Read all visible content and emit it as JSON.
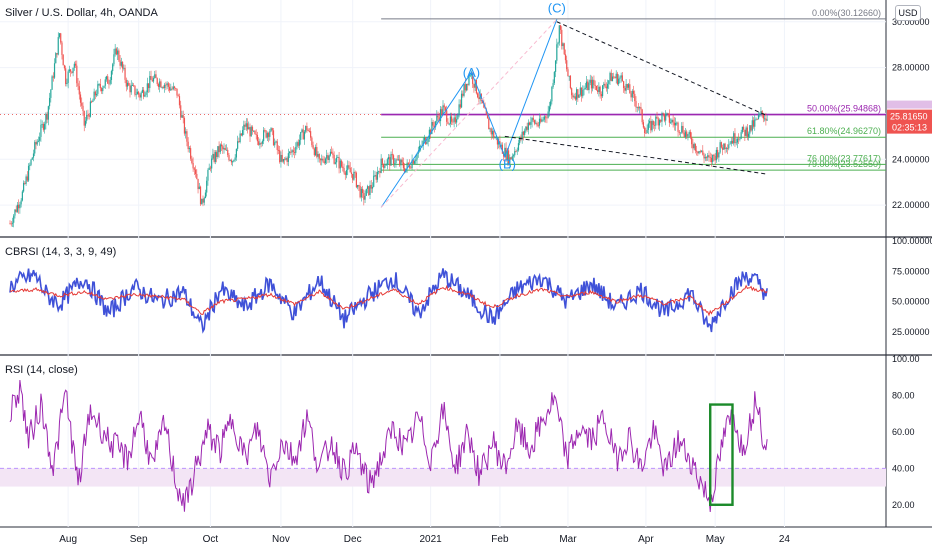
{
  "header": {
    "main_title": "Silver / U.S. Dollar, 4h, OANDA",
    "currency": "USD"
  },
  "chart_data": [
    {
      "type": "candlestick",
      "title": "Silver / U.S. Dollar, 4h, OANDA",
      "ylim": [
        21.0,
        30.6
      ],
      "yticks": [
        "30.00000",
        "28.00000",
        "26.00000",
        "24.00000",
        "22.00000"
      ],
      "yticks_values": [
        30,
        28,
        26,
        24,
        22
      ],
      "price_marker": {
        "value": "25.81650",
        "countdown": "02:35:13",
        "price": 25.8165,
        "color": "#ef5350"
      },
      "series_anchors": [
        [
          0,
          21.2
        ],
        [
          10,
          22.5
        ],
        [
          20,
          24.5
        ],
        [
          30,
          26.0
        ],
        [
          40,
          29.5
        ],
        [
          45,
          27.5
        ],
        [
          52,
          28.2
        ],
        [
          60,
          25.5
        ],
        [
          70,
          27.0
        ],
        [
          80,
          27.5
        ],
        [
          86,
          28.8
        ],
        [
          95,
          27.2
        ],
        [
          105,
          26.8
        ],
        [
          115,
          27.5
        ],
        [
          125,
          27.3
        ],
        [
          135,
          26.9
        ],
        [
          142,
          25.0
        ],
        [
          150,
          23.5
        ],
        [
          155,
          22.0
        ],
        [
          162,
          23.8
        ],
        [
          170,
          24.5
        ],
        [
          180,
          24.0
        ],
        [
          190,
          25.5
        ],
        [
          200,
          24.8
        ],
        [
          210,
          25.3
        ],
        [
          220,
          23.8
        ],
        [
          230,
          24.5
        ],
        [
          240,
          25.4
        ],
        [
          250,
          23.8
        ],
        [
          258,
          24.3
        ],
        [
          268,
          23.7
        ],
        [
          278,
          23.3
        ],
        [
          285,
          22.3
        ],
        [
          292,
          22.8
        ],
        [
          300,
          23.8
        ],
        [
          310,
          24.0
        ],
        [
          320,
          23.6
        ],
        [
          330,
          24.3
        ],
        [
          340,
          25.3
        ],
        [
          350,
          26.2
        ],
        [
          358,
          25.4
        ],
        [
          366,
          26.9
        ],
        [
          372,
          27.8
        ],
        [
          380,
          26.6
        ],
        [
          388,
          25.3
        ],
        [
          396,
          24.6
        ],
        [
          404,
          24.0
        ],
        [
          412,
          24.8
        ],
        [
          420,
          25.7
        ],
        [
          428,
          25.5
        ],
        [
          436,
          26.2
        ],
        [
          444,
          29.8
        ],
        [
          448,
          28.5
        ],
        [
          454,
          26.8
        ],
        [
          462,
          27.0
        ],
        [
          470,
          27.3
        ],
        [
          478,
          27.0
        ],
        [
          486,
          27.6
        ],
        [
          494,
          27.5
        ],
        [
          500,
          27.0
        ],
        [
          508,
          26.3
        ],
        [
          514,
          25.2
        ],
        [
          520,
          25.6
        ],
        [
          528,
          25.9
        ],
        [
          536,
          25.6
        ],
        [
          544,
          25.3
        ],
        [
          552,
          24.7
        ],
        [
          560,
          24.2
        ],
        [
          566,
          23.9
        ],
        [
          574,
          24.5
        ],
        [
          582,
          24.8
        ],
        [
          590,
          25.1
        ],
        [
          598,
          25.3
        ],
        [
          604,
          25.7
        ],
        [
          608,
          26.0
        ],
        [
          612,
          25.8
        ]
      ],
      "fib_levels": [
        {
          "label": "0.00%(30.12660)",
          "value": 30.1266,
          "color": "#787b86"
        },
        {
          "label": "50.00%(25.94868)",
          "value": 25.94868,
          "color": "#9c27b0"
        },
        {
          "label": "61.80%(24.96270)",
          "value": 24.9627,
          "color": "#4caf50"
        },
        {
          "label": "76.00%(23.77617)",
          "value": 23.77617,
          "color": "#4caf50"
        },
        {
          "label": "79.00%(23.52550)",
          "value": 23.5255,
          "color": "#4caf50"
        }
      ],
      "wave_labels": [
        {
          "label": "(A)",
          "x": 373,
          "value": 27.6
        },
        {
          "label": "(B)",
          "x": 402,
          "value": 23.6
        },
        {
          "label": "(C)",
          "x": 442,
          "value": 30.4
        }
      ],
      "channel_lines": [
        [
          [
            442,
            30.0
          ],
          [
            612,
            25.9
          ]
        ],
        [
          [
            400,
            25.0
          ],
          [
            612,
            23.35
          ]
        ]
      ],
      "wave_lines": [
        [
          [
            300,
            21.9
          ],
          [
            373,
            27.8
          ],
          [
            400,
            24.1
          ],
          [
            442,
            30.1
          ]
        ]
      ]
    },
    {
      "type": "line",
      "title": "CBRSI (14, 3, 3, 9, 49)",
      "ylim": [
        10,
        100
      ],
      "yticks": [
        "100.00000",
        "75.00000",
        "50.00000",
        "25.00000"
      ],
      "yticks_values": [
        100,
        75,
        50,
        25
      ],
      "series": [
        {
          "name": "",
          "color": "#3f51d8",
          "anchors": [
            [
              0,
              62
            ],
            [
              10,
              68
            ],
            [
              20,
              72
            ],
            [
              30,
              55
            ],
            [
              40,
              48
            ],
            [
              60,
              70
            ],
            [
              80,
              40
            ],
            [
              100,
              62
            ],
            [
              120,
              50
            ],
            [
              140,
              58
            ],
            [
              155,
              28
            ],
            [
              170,
              60
            ],
            [
              190,
              45
            ],
            [
              210,
              65
            ],
            [
              230,
              40
            ],
            [
              250,
              68
            ],
            [
              270,
              35
            ],
            [
              290,
              55
            ],
            [
              310,
              70
            ],
            [
              330,
              40
            ],
            [
              350,
              72
            ],
            [
              370,
              55
            ],
            [
              390,
              35
            ],
            [
              410,
              60
            ],
            [
              430,
              70
            ],
            [
              450,
              50
            ],
            [
              470,
              65
            ],
            [
              490,
              45
            ],
            [
              510,
              60
            ],
            [
              530,
              40
            ],
            [
              550,
              58
            ],
            [
              565,
              28
            ],
            [
              580,
              55
            ],
            [
              595,
              72
            ],
            [
              605,
              65
            ],
            [
              612,
              55
            ]
          ]
        },
        {
          "name": "",
          "color": "#e53935",
          "anchors": [
            [
              0,
              58
            ],
            [
              20,
              60
            ],
            [
              40,
              55
            ],
            [
              60,
              58
            ],
            [
              80,
              52
            ],
            [
              100,
              56
            ],
            [
              120,
              54
            ],
            [
              140,
              52
            ],
            [
              155,
              40
            ],
            [
              170,
              50
            ],
            [
              190,
              52
            ],
            [
              210,
              56
            ],
            [
              230,
              48
            ],
            [
              250,
              58
            ],
            [
              270,
              44
            ],
            [
              290,
              52
            ],
            [
              310,
              60
            ],
            [
              330,
              48
            ],
            [
              350,
              62
            ],
            [
              370,
              56
            ],
            [
              390,
              45
            ],
            [
              410,
              55
            ],
            [
              430,
              60
            ],
            [
              450,
              54
            ],
            [
              470,
              58
            ],
            [
              490,
              50
            ],
            [
              510,
              55
            ],
            [
              530,
              48
            ],
            [
              550,
              54
            ],
            [
              565,
              40
            ],
            [
              580,
              50
            ],
            [
              595,
              62
            ],
            [
              612,
              58
            ]
          ]
        }
      ]
    },
    {
      "type": "line",
      "title": "RSI (14, close)",
      "ylim": [
        10,
        100
      ],
      "yticks": [
        "100.00",
        "80.00",
        "60.00",
        "40.00",
        "20.00"
      ],
      "yticks_values": [
        100,
        80,
        60,
        40,
        20
      ],
      "band": [
        30,
        40
      ],
      "series": [
        {
          "name": "",
          "color": "#9c27b0",
          "anchors": [
            [
              0,
              70
            ],
            [
              8,
              85
            ],
            [
              15,
              55
            ],
            [
              25,
              75
            ],
            [
              35,
              40
            ],
            [
              45,
              82
            ],
            [
              55,
              30
            ],
            [
              65,
              72
            ],
            [
              80,
              55
            ],
            [
              95,
              45
            ],
            [
              105,
              70
            ],
            [
              115,
              40
            ],
            [
              125,
              65
            ],
            [
              135,
              30
            ],
            [
              142,
              20
            ],
            [
              150,
              40
            ],
            [
              160,
              60
            ],
            [
              170,
              50
            ],
            [
              180,
              68
            ],
            [
              190,
              45
            ],
            [
              200,
              62
            ],
            [
              210,
              35
            ],
            [
              220,
              55
            ],
            [
              230,
              45
            ],
            [
              240,
              68
            ],
            [
              250,
              40
            ],
            [
              260,
              55
            ],
            [
              270,
              38
            ],
            [
              280,
              50
            ],
            [
              290,
              30
            ],
            [
              300,
              45
            ],
            [
              310,
              62
            ],
            [
              320,
              50
            ],
            [
              330,
              68
            ],
            [
              340,
              45
            ],
            [
              350,
              72
            ],
            [
              360,
              40
            ],
            [
              370,
              60
            ],
            [
              380,
              35
            ],
            [
              390,
              55
            ],
            [
              400,
              40
            ],
            [
              410,
              62
            ],
            [
              420,
              50
            ],
            [
              430,
              65
            ],
            [
              440,
              78
            ],
            [
              450,
              45
            ],
            [
              460,
              62
            ],
            [
              470,
              55
            ],
            [
              480,
              68
            ],
            [
              490,
              45
            ],
            [
              500,
              58
            ],
            [
              510,
              40
            ],
            [
              520,
              60
            ],
            [
              530,
              38
            ],
            [
              540,
              55
            ],
            [
              550,
              45
            ],
            [
              560,
              30
            ],
            [
              566,
              22
            ],
            [
              572,
              40
            ],
            [
              578,
              60
            ],
            [
              585,
              70
            ],
            [
              592,
              50
            ],
            [
              598,
              65
            ],
            [
              604,
              80
            ],
            [
              608,
              60
            ],
            [
              612,
              55
            ]
          ]
        }
      ],
      "highlight_box": {
        "x0": 566,
        "x1": 584,
        "y0": 20,
        "y1": 75
      }
    }
  ],
  "x_axis": {
    "labels": [
      "Aug",
      "Sep",
      "Oct",
      "Nov",
      "Dec",
      "2021",
      "Feb",
      "Mar",
      "Apr",
      "May",
      "24"
    ],
    "positions": [
      47,
      104,
      162,
      219,
      277,
      340,
      396,
      451,
      514,
      570,
      626
    ]
  }
}
